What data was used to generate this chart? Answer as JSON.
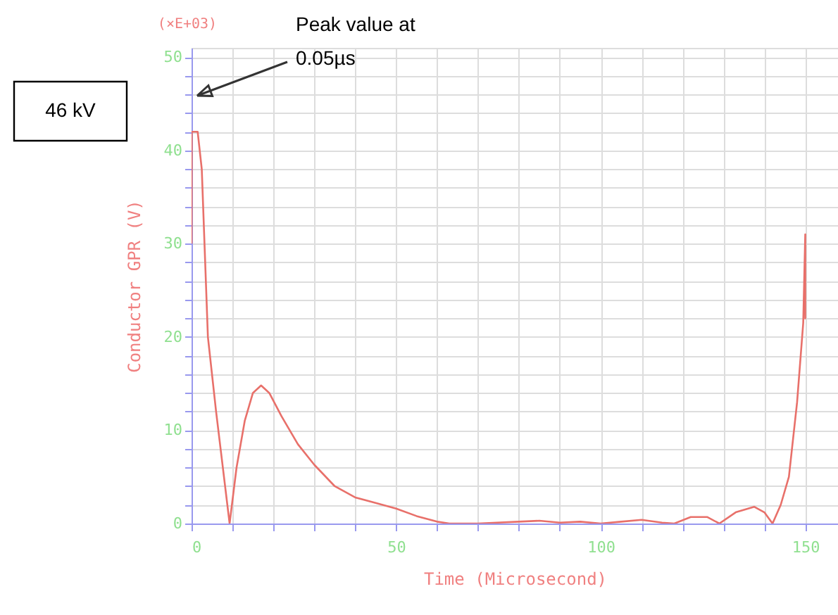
{
  "chart_data": {
    "type": "line",
    "xlabel": "Time (Microsecond)",
    "ylabel": "Conductor GPR (V)",
    "annotations": [
      "(×E+03)",
      "Peak value at 0.05µs",
      "46 kV"
    ],
    "series": [
      {
        "color": "#e8706a",
        "x": [
          0,
          0.05,
          1.5,
          2.5,
          4,
          6,
          9.3,
          11,
          13,
          15,
          17,
          19,
          22,
          26,
          30,
          35,
          40,
          45,
          50,
          55,
          60,
          63,
          70,
          80,
          85,
          90,
          95,
          100,
          105,
          110,
          115,
          118,
          122,
          126,
          129,
          133,
          137.5,
          140,
          142,
          144,
          146,
          148,
          149.5,
          150,
          150,
          150
        ],
        "values": [
          30,
          42,
          42,
          38,
          20,
          12,
          0,
          6,
          11,
          14,
          14.8,
          14,
          11.5,
          8.5,
          6.3,
          4,
          2.8,
          2.2,
          1.6,
          0.8,
          0.2,
          0,
          0,
          0.2,
          0.3,
          0.1,
          0.2,
          0,
          0.2,
          0.4,
          0.1,
          0,
          0.7,
          0.7,
          0,
          1.2,
          1.8,
          1.2,
          0,
          2,
          5,
          13,
          21.5,
          31,
          22,
          25
        ]
      }
    ],
    "xlim": [
      0,
      158
    ],
    "ylim": [
      0,
      51
    ],
    "xticks": [
      0,
      {
        "value": 10,
        "label": null
      },
      {
        "value": 20,
        "label": null
      },
      {
        "value": 30,
        "label": null
      },
      {
        "value": 40,
        "label": null
      },
      50,
      {
        "value": 60,
        "label": null
      },
      {
        "value": 70,
        "label": null
      },
      {
        "value": 80,
        "label": null
      },
      {
        "value": 90,
        "label": null
      },
      100,
      {
        "value": 110,
        "label": null
      },
      {
        "value": 120,
        "label": null
      },
      {
        "value": 130,
        "label": null
      },
      {
        "value": 140,
        "label": null
      },
      150
    ],
    "yticks": [
      0,
      {
        "value": 2,
        "label": null
      },
      {
        "value": 4,
        "label": null
      },
      {
        "value": 6,
        "label": null
      },
      {
        "value": 8,
        "label": null
      },
      10,
      {
        "value": 12,
        "label": null
      },
      {
        "value": 14,
        "label": null
      },
      {
        "value": 16,
        "label": null
      },
      {
        "value": 18,
        "label": null
      },
      20,
      {
        "value": 22,
        "label": null
      },
      {
        "value": 24,
        "label": null
      },
      {
        "value": 26,
        "label": null
      },
      {
        "value": 28,
        "label": null
      },
      30,
      {
        "value": 32,
        "label": null
      },
      {
        "value": 34,
        "label": null
      },
      {
        "value": 36,
        "label": null
      },
      {
        "value": 38,
        "label": null
      },
      40,
      {
        "value": 42,
        "label": null
      },
      {
        "value": 44,
        "label": null
      },
      {
        "value": 46,
        "label": null
      },
      {
        "value": 48,
        "label": null
      },
      50
    ],
    "grid": true,
    "marker": "none",
    "line_style": "solid"
  }
}
